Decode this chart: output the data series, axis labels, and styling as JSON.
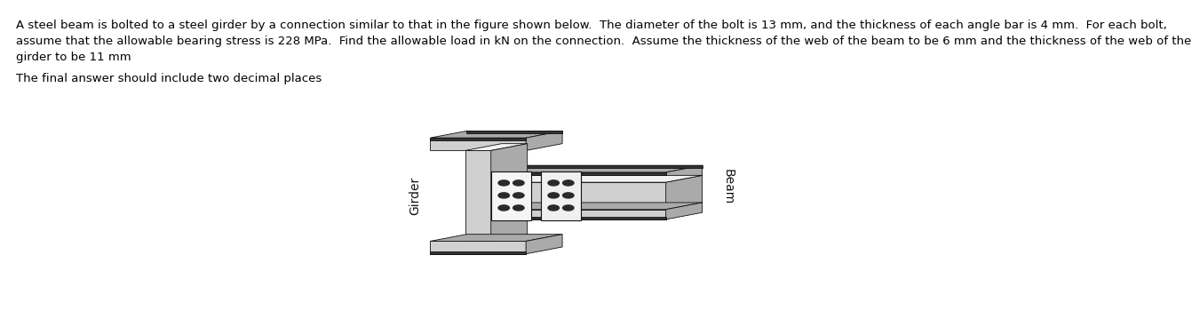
{
  "line1": "A steel beam is bolted to a steel girder by a connection similar to that in the figure shown below.  The diameter of the bolt is 13 mm, and the thickness of each angle bar is 4 mm.  For each bolt,",
  "line2": "assume that the allowable bearing stress is 228 MPa.  Find the allowable load in kN on the connection.  Assume the thickness of the web of the beam to be 6 mm and the thickness of the web of the",
  "line3": "girder to be 11 mm",
  "line4": "The final answer should include two decimal places",
  "label_beam": "Beam",
  "label_girder": "Girder",
  "text_color": "#000000",
  "bg_color": "#ffffff",
  "font_size_body": 9.5,
  "font_size_label": 10,
  "c_light": "#d0d0d0",
  "c_mid": "#aaaaaa",
  "c_dark": "#888888",
  "c_vdark": "#444444",
  "c_white": "#f2f2f2",
  "c_black": "#111111",
  "c_darkflange": "#333333"
}
